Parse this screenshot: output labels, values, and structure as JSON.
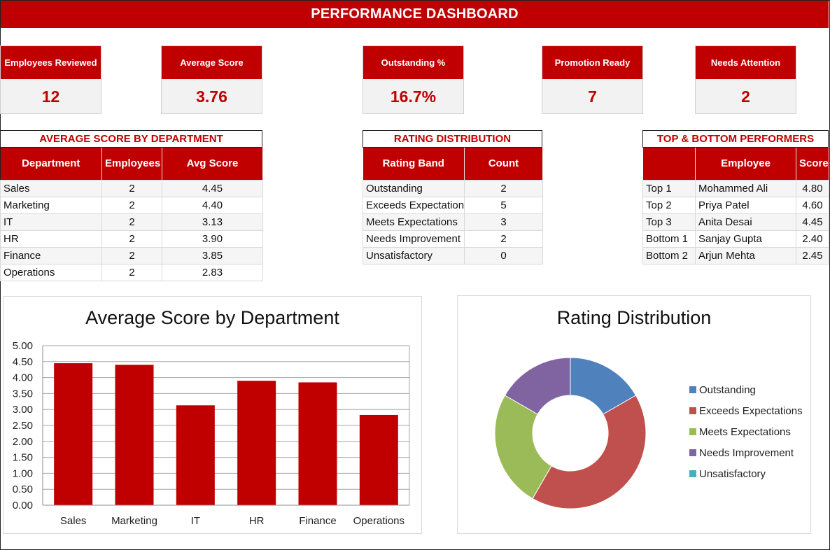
{
  "header": {
    "title": "PERFORMANCE DASHBOARD"
  },
  "kpis": [
    {
      "label": "Employees Reviewed",
      "value": "12"
    },
    {
      "label": "Average Score",
      "value": "3.76"
    },
    {
      "label": "Outstanding %",
      "value": "16.7%"
    },
    {
      "label": "Promotion Ready",
      "value": "7"
    },
    {
      "label": "Needs Attention",
      "value": "2"
    }
  ],
  "dept_table": {
    "title": "AVERAGE SCORE BY DEPARTMENT",
    "headers": [
      "Department",
      "Employees",
      "Avg Score"
    ],
    "rows": [
      [
        "Sales",
        "2",
        "4.45"
      ],
      [
        "Marketing",
        "2",
        "4.40"
      ],
      [
        "IT",
        "2",
        "3.13"
      ],
      [
        "HR",
        "2",
        "3.90"
      ],
      [
        "Finance",
        "2",
        "3.85"
      ],
      [
        "Operations",
        "2",
        "2.83"
      ]
    ]
  },
  "rating_table": {
    "title": "RATING DISTRIBUTION",
    "headers": [
      "Rating Band",
      "Count"
    ],
    "rows": [
      [
        "Outstanding",
        "2"
      ],
      [
        "Exceeds Expectations",
        "5"
      ],
      [
        "Meets Expectations",
        "3"
      ],
      [
        "Needs Improvement",
        "2"
      ],
      [
        "Unsatisfactory",
        "0"
      ]
    ]
  },
  "performers_table": {
    "title": "TOP & BOTTOM PERFORMERS",
    "headers": [
      "",
      "Employee",
      "Score"
    ],
    "rows": [
      [
        "Top 1",
        "Mohammed Ali",
        "4.80"
      ],
      [
        "Top 2",
        "Priya Patel",
        "4.60"
      ],
      [
        "Top 3",
        "Anita Desai",
        "4.45"
      ],
      [
        "Bottom 1",
        "Sanjay Gupta",
        "2.40"
      ],
      [
        "Bottom 2",
        "Arjun Mehta",
        "2.45"
      ]
    ]
  },
  "colors": {
    "accent": "#c00000",
    "bar": "#c00000",
    "donut": [
      "#4f81bd",
      "#c0504d",
      "#9bbb59",
      "#8064a2",
      "#4bacc6"
    ]
  },
  "chart_data": [
    {
      "type": "bar",
      "title": "Average Score by Department",
      "categories": [
        "Sales",
        "Marketing",
        "IT",
        "HR",
        "Finance",
        "Operations"
      ],
      "values": [
        4.45,
        4.4,
        3.13,
        3.9,
        3.85,
        2.83
      ],
      "ylim": [
        0,
        5
      ],
      "yticks": [
        "0.00",
        "0.50",
        "1.00",
        "1.50",
        "2.00",
        "2.50",
        "3.00",
        "3.50",
        "4.00",
        "4.50",
        "5.00"
      ],
      "grid": true,
      "legend": "none"
    },
    {
      "type": "pie",
      "title": "Rating Distribution",
      "labels": [
        "Outstanding",
        "Exceeds Expectations",
        "Meets Expectations",
        "Needs Improvement",
        "Unsatisfactory"
      ],
      "values": [
        2,
        5,
        3,
        2,
        0
      ],
      "donut": true,
      "legend": "right"
    }
  ]
}
